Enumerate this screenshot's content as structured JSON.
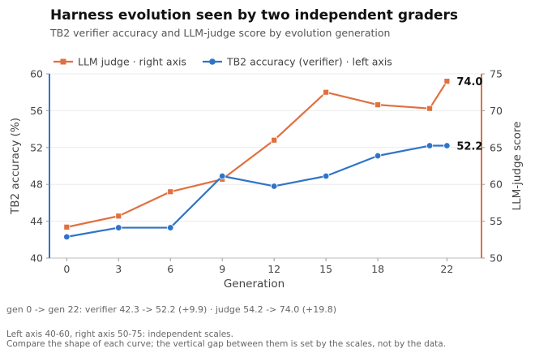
{
  "chart_data": {
    "type": "line",
    "title": "Harness evolution seen by two independent graders",
    "subtitle": "TB2 verifier accuracy and LLM-judge score by evolution generation",
    "xlabel": "Generation",
    "x_ticks": [
      0,
      3,
      6,
      9,
      12,
      15,
      18,
      22
    ],
    "xlim": [
      -1,
      24
    ],
    "grid": "horizontal",
    "legend_position": "top-left",
    "y_left": {
      "label": "TB2 accuracy (%)",
      "lim": [
        40,
        60
      ],
      "ticks": [
        40,
        44,
        48,
        52,
        56,
        60
      ],
      "color": "#2f74c8"
    },
    "y_right": {
      "label": "LLM-judge score",
      "lim": [
        50,
        75
      ],
      "ticks": [
        50,
        55,
        60,
        65,
        70,
        75
      ],
      "color": "#e07040"
    },
    "series": [
      {
        "name": "LLM judge",
        "legend_label": "LLM judge  ·  right axis",
        "axis": "right",
        "color": "#e07040",
        "marker": "square",
        "x": [
          0,
          3,
          6,
          9,
          12,
          15,
          18,
          21,
          22
        ],
        "y": [
          54.2,
          55.7,
          59.0,
          60.7,
          66.0,
          72.5,
          70.8,
          70.3,
          74.0
        ],
        "end_label": "74.0"
      },
      {
        "name": "TB2 accuracy (verifier)",
        "legend_label": "TB2 accuracy (verifier)  ·  left axis",
        "axis": "left",
        "color": "#2f74c8",
        "marker": "circle",
        "x": [
          0,
          3,
          6,
          9,
          12,
          15,
          18,
          21,
          22
        ],
        "y": [
          42.3,
          43.3,
          43.3,
          48.9,
          47.8,
          48.9,
          51.1,
          52.2,
          52.2
        ],
        "end_label": "52.2"
      }
    ]
  },
  "notes": {
    "summary": "gen 0 -> gen 22:  verifier 42.3 -> 52.2 (+9.9)   ·   judge 54.2 -> 74.0 (+19.8)",
    "line1": "Left axis 40-60, right axis 50-75: independent scales.",
    "line2": "Compare the shape of each curve; the vertical gap between them is set by the scales, not by the data."
  }
}
